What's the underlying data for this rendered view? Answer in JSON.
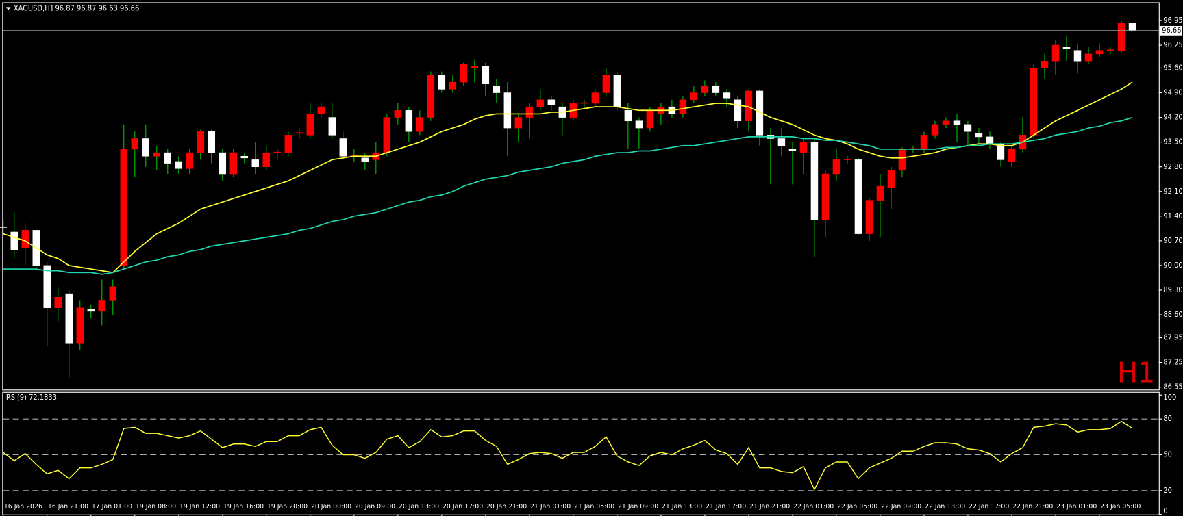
{
  "chart_data": [
    {
      "type": "candlestick",
      "title": "XAGUSD,H1",
      "ohlc_text": "96.87 96.87 96.63 96.66",
      "annotation": "H1",
      "up_color": "#ff0000",
      "down_color": "#ffffff",
      "wick_color": "#00c000",
      "ylim": [
        86.48,
        97.42
      ],
      "yticks": [
        96.95,
        96.25,
        {
          "value": 95.6,
          "label": "95.60"
        },
        {
          "value": 94.9,
          "label": "94.90"
        },
        {
          "value": 94.2,
          "label": "94.20"
        },
        {
          "value": 93.5,
          "label": "93.50"
        },
        {
          "value": 92.8,
          "label": "92.80"
        },
        {
          "value": 92.1,
          "label": "92.10"
        },
        {
          "value": 91.4,
          "label": "91.40"
        },
        {
          "value": 90.7,
          "label": "90.70"
        },
        {
          "value": 90.0,
          "label": "90.00"
        },
        {
          "value": 89.3,
          "label": "89.30"
        },
        {
          "value": 88.6,
          "label": "88.60"
        },
        87.95,
        87.25,
        86.55
      ],
      "last_price": 96.66,
      "categories": [
        "16 Jan 2026",
        null,
        null,
        null,
        "16 Jan 21:00",
        null,
        null,
        null,
        "17 Jan 01:00",
        null,
        null,
        null,
        "19 Jan 08:00",
        null,
        null,
        null,
        "19 Jan 12:00",
        null,
        null,
        null,
        "19 Jan 16:00",
        null,
        null,
        null,
        "19 Jan 20:00",
        null,
        null,
        null,
        "20 Jan 00:00",
        null,
        null,
        null,
        "20 Jan 09:00",
        null,
        null,
        null,
        "20 Jan 13:00",
        null,
        null,
        null,
        "20 Jan 17:00",
        null,
        null,
        null,
        "20 Jan 21:00",
        null,
        null,
        null,
        "21 Jan 01:00",
        null,
        null,
        null,
        "21 Jan 05:00",
        null,
        null,
        null,
        "21 Jan 09:00",
        null,
        null,
        null,
        "21 Jan 13:00",
        null,
        null,
        null,
        "21 Jan 17:00",
        null,
        null,
        null,
        "21 Jan 21:00",
        null,
        null,
        null,
        "22 Jan 01:00",
        null,
        null,
        null,
        "22 Jan 05:00",
        null,
        null,
        null,
        "22 Jan 09:00",
        null,
        null,
        null,
        "22 Jan 13:00",
        null,
        null,
        null,
        "22 Jan 17:00",
        null,
        null,
        null,
        "22 Jan 21:00",
        null,
        null,
        null,
        "23 Jan 01:00",
        null,
        null,
        null,
        "23 Jan 05:00",
        null,
        null,
        null
      ],
      "open": [
        91.1,
        90.95,
        90.5,
        91.0,
        90.0,
        88.8,
        89.2,
        87.8,
        88.75,
        88.7,
        89.0,
        90.0,
        93.3,
        93.6,
        93.1,
        93.2,
        92.95,
        92.75,
        93.2,
        93.8,
        93.2,
        92.6,
        93.1,
        93.0,
        92.8,
        93.2,
        93.2,
        93.75,
        93.7,
        94.3,
        94.2,
        93.6,
        93.1,
        93.05,
        93.0,
        93.2,
        94.2,
        94.4,
        93.8,
        94.2,
        95.4,
        95.0,
        95.2,
        95.6,
        95.65,
        95.1,
        94.9,
        93.9,
        94.2,
        94.5,
        94.7,
        94.5,
        94.2,
        94.6,
        94.6,
        94.9,
        95.4,
        94.4,
        94.1,
        93.9,
        94.3,
        94.5,
        94.3,
        94.7,
        94.9,
        95.1,
        94.9,
        94.7,
        94.1,
        94.95,
        93.7,
        93.6,
        93.3,
        93.2,
        93.5,
        91.3,
        92.6,
        93.0,
        93.0,
        90.9,
        91.85,
        92.2,
        92.7,
        93.3,
        93.3,
        93.7,
        94.0,
        94.1,
        94.0,
        93.75,
        93.65,
        93.45,
        92.95,
        93.3,
        93.7,
        95.6,
        95.8,
        96.2,
        96.1,
        95.8,
        96.0,
        96.1,
        96.1,
        96.87
      ],
      "high": [
        91.3,
        91.5,
        91.2,
        91.0,
        90.1,
        89.4,
        89.3,
        89.0,
        88.9,
        89.6,
        89.6,
        94.0,
        93.8,
        94.0,
        93.4,
        93.3,
        93.1,
        93.3,
        93.85,
        93.85,
        93.3,
        93.3,
        93.2,
        93.5,
        93.4,
        93.3,
        93.8,
        93.9,
        94.6,
        94.6,
        94.6,
        93.8,
        93.3,
        93.2,
        93.5,
        94.3,
        94.6,
        94.5,
        94.4,
        95.5,
        95.5,
        95.4,
        95.75,
        95.85,
        95.75,
        95.3,
        95.2,
        94.3,
        94.6,
        95.0,
        94.8,
        94.6,
        94.7,
        94.7,
        95.0,
        95.6,
        95.5,
        94.6,
        94.2,
        94.5,
        94.6,
        94.7,
        94.8,
        95.1,
        95.25,
        95.2,
        95.0,
        94.8,
        95.0,
        95.0,
        93.9,
        93.9,
        93.5,
        93.6,
        93.6,
        92.7,
        93.3,
        93.1,
        93.05,
        91.9,
        92.6,
        92.8,
        93.35,
        93.4,
        93.8,
        94.1,
        94.2,
        94.3,
        94.1,
        93.9,
        93.8,
        93.5,
        93.4,
        94.2,
        95.7,
        96.0,
        96.4,
        96.5,
        96.3,
        96.2,
        96.3,
        96.2,
        96.95,
        96.87
      ],
      "low": [
        90.9,
        90.2,
        90.0,
        89.9,
        87.7,
        88.4,
        86.8,
        87.6,
        88.5,
        88.3,
        88.6,
        89.9,
        92.5,
        92.8,
        92.7,
        92.6,
        92.6,
        92.6,
        93.0,
        92.9,
        92.4,
        92.5,
        92.9,
        92.6,
        92.7,
        93.0,
        93.1,
        93.6,
        93.6,
        94.2,
        93.6,
        93.0,
        92.95,
        92.7,
        92.6,
        93.1,
        94.0,
        93.5,
        93.7,
        94.1,
        94.9,
        94.9,
        95.1,
        95.2,
        94.8,
        94.6,
        93.1,
        93.5,
        93.6,
        94.4,
        94.4,
        93.7,
        94.1,
        94.45,
        94.5,
        94.8,
        94.4,
        93.3,
        93.3,
        93.8,
        94.0,
        94.2,
        94.2,
        94.6,
        94.8,
        94.8,
        94.5,
        93.9,
        93.8,
        93.4,
        92.3,
        93.1,
        92.3,
        92.6,
        90.25,
        90.8,
        92.4,
        92.9,
        90.85,
        90.7,
        90.8,
        91.6,
        92.5,
        93.2,
        93.2,
        93.6,
        93.9,
        93.5,
        93.4,
        93.4,
        93.3,
        92.8,
        92.8,
        93.2,
        93.6,
        95.3,
        95.4,
        95.8,
        95.45,
        95.7,
        95.9,
        96.0,
        96.05,
        96.63
      ],
      "close": [
        91.08,
        90.45,
        91.0,
        90.0,
        88.8,
        89.1,
        87.8,
        88.8,
        88.7,
        89.0,
        89.4,
        93.3,
        93.6,
        93.1,
        93.2,
        92.9,
        92.75,
        93.2,
        93.8,
        93.2,
        92.6,
        93.2,
        93.05,
        92.8,
        93.2,
        93.22,
        93.7,
        93.77,
        94.3,
        94.5,
        93.7,
        93.1,
        93.12,
        92.95,
        93.2,
        94.2,
        94.4,
        93.8,
        94.2,
        95.4,
        95.0,
        95.2,
        95.7,
        95.65,
        95.15,
        94.9,
        93.9,
        94.2,
        94.5,
        94.7,
        94.55,
        94.2,
        94.6,
        94.62,
        94.9,
        95.4,
        94.5,
        94.1,
        93.9,
        94.4,
        94.5,
        94.3,
        94.7,
        94.9,
        95.1,
        94.9,
        94.75,
        94.1,
        94.95,
        93.7,
        93.6,
        93.4,
        93.25,
        93.5,
        91.3,
        92.6,
        93.0,
        93.02,
        90.9,
        91.85,
        92.25,
        92.7,
        93.3,
        93.32,
        93.7,
        94.0,
        94.1,
        94.0,
        93.8,
        93.65,
        93.45,
        93.0,
        93.3,
        93.7,
        95.6,
        95.8,
        96.25,
        96.15,
        95.8,
        96.0,
        96.1,
        96.12,
        96.87,
        96.66
      ],
      "series": [
        {
          "color": "#ffff33",
          "values": [
            90.9,
            90.8,
            90.7,
            90.5,
            90.3,
            90.2,
            90.0,
            89.95,
            89.9,
            89.85,
            89.8,
            90.1,
            90.4,
            90.65,
            90.9,
            91.05,
            91.2,
            91.4,
            91.6,
            91.7,
            91.8,
            91.9,
            92.0,
            92.1,
            92.2,
            92.3,
            92.4,
            92.55,
            92.7,
            92.85,
            93.0,
            93.05,
            93.1,
            93.1,
            93.1,
            93.2,
            93.3,
            93.4,
            93.5,
            93.65,
            93.8,
            93.9,
            94.0,
            94.15,
            94.25,
            94.3,
            94.3,
            94.3,
            94.3,
            94.3,
            94.35,
            94.35,
            94.4,
            94.45,
            94.5,
            94.5,
            94.5,
            94.45,
            94.4,
            94.4,
            94.4,
            94.4,
            94.45,
            94.5,
            94.55,
            94.6,
            94.6,
            94.55,
            94.5,
            94.35,
            94.2,
            94.1,
            94.0,
            93.85,
            93.7,
            93.6,
            93.55,
            93.45,
            93.3,
            93.2,
            93.1,
            93.05,
            93.05,
            93.1,
            93.15,
            93.2,
            93.3,
            93.35,
            93.4,
            93.45,
            93.45,
            93.4,
            93.4,
            93.5,
            93.7,
            93.9,
            94.1,
            94.25,
            94.4,
            94.55,
            94.7,
            94.85,
            95.0,
            95.2
          ]
        },
        {
          "color": "#20d8b0",
          "values": [
            89.9,
            89.9,
            89.9,
            89.9,
            89.85,
            89.85,
            89.8,
            89.8,
            89.8,
            89.75,
            89.8,
            89.9,
            90.0,
            90.1,
            90.15,
            90.25,
            90.3,
            90.4,
            90.45,
            90.55,
            90.6,
            90.65,
            90.7,
            90.75,
            90.8,
            90.85,
            90.9,
            91.0,
            91.05,
            91.15,
            91.25,
            91.3,
            91.4,
            91.45,
            91.5,
            91.6,
            91.7,
            91.8,
            91.85,
            91.95,
            92.0,
            92.1,
            92.25,
            92.35,
            92.45,
            92.5,
            92.55,
            92.65,
            92.7,
            92.75,
            92.8,
            92.9,
            92.95,
            93.0,
            93.1,
            93.15,
            93.2,
            93.2,
            93.25,
            93.25,
            93.3,
            93.35,
            93.4,
            93.4,
            93.45,
            93.5,
            93.55,
            93.6,
            93.65,
            93.65,
            93.65,
            93.65,
            93.65,
            93.6,
            93.6,
            93.55,
            93.55,
            93.5,
            93.45,
            93.4,
            93.3,
            93.3,
            93.3,
            93.3,
            93.3,
            93.3,
            93.35,
            93.35,
            93.4,
            93.4,
            93.45,
            93.45,
            93.45,
            93.5,
            93.55,
            93.6,
            93.7,
            93.75,
            93.8,
            93.9,
            93.95,
            94.05,
            94.1,
            94.2
          ]
        }
      ]
    },
    {
      "type": "line",
      "title": "RSI(9) 72.1833",
      "color": "#ffff33",
      "ylim": [
        0,
        100
      ],
      "yticks": [
        100,
        80,
        50,
        20,
        0
      ],
      "levels": [
        80,
        50,
        20
      ],
      "values": [
        52,
        45,
        51,
        42,
        34,
        37,
        30,
        39,
        39,
        42,
        46,
        72,
        73,
        68,
        68,
        66,
        64,
        66,
        70,
        63,
        56,
        59,
        59,
        57,
        61,
        61,
        66,
        66,
        71,
        73,
        58,
        50,
        50,
        47,
        52,
        63,
        66,
        56,
        61,
        71,
        65,
        66,
        70,
        70,
        62,
        57,
        42,
        46,
        51,
        52,
        51,
        47,
        52,
        52,
        57,
        65,
        49,
        44,
        41,
        49,
        52,
        50,
        55,
        58,
        62,
        54,
        51,
        42,
        56,
        39,
        39,
        36,
        35,
        40,
        21,
        39,
        44,
        44,
        30,
        39,
        43,
        47,
        53,
        53,
        57,
        60,
        60,
        59,
        55,
        54,
        51,
        44,
        51,
        56,
        73,
        74,
        76,
        75,
        69,
        71,
        71,
        72,
        78,
        72.18
      ]
    }
  ]
}
